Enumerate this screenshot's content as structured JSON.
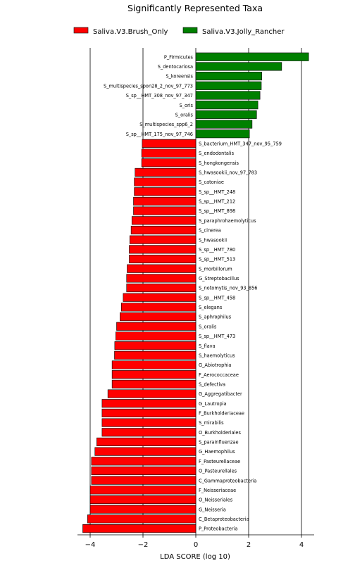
{
  "chart_data": {
    "type": "bar",
    "orientation": "horizontal",
    "title": "Significantly Represented Taxa",
    "xlabel": "LDA SCORE (log 10)",
    "ylabel": "",
    "xlim": [
      -4.3,
      4.6
    ],
    "x_ticks": [
      -4,
      -2,
      0,
      2,
      4
    ],
    "x_tick_labels": [
      "−4",
      "−2",
      "0",
      "2",
      "4"
    ],
    "grid": "vertical lines at major x ticks",
    "legend_position": "top-center",
    "colors": {
      "Saliva.V3.Brush_Only": "#ff0000",
      "Saliva.V3.Jolly_Rancher": "#008000"
    },
    "legend": [
      "Saliva.V3.Brush_Only",
      "Saliva.V3.Jolly_Rancher"
    ],
    "categories": [
      "P_Firmicutes",
      "S_dentocariosa",
      "S_koreensis",
      "S_multispecies_spon28_2_nov_97_773",
      "S_sp__HMT_308_nov_97_347",
      "S_oris",
      "S_oralis",
      "S_multispecies_spp6_2",
      "S_sp__HMT_175_nov_97_746",
      "S_bacterium_HMT_347_nov_95_759",
      "S_endodontalis",
      "S_hongkongensis",
      "S_hwasookii_nov_97_783",
      "S_catoniae",
      "S_sp__HMT_248",
      "S_sp__HMT_212",
      "S_sp__HMT_898",
      "S_paraphrohaemolyticus",
      "S_cinerea",
      "S_hwasookii",
      "S_sp__HMT_780",
      "S_sp__HMT_513",
      "S_morbillorum",
      "G_Streptobacillus",
      "S_notomytis_nov_93_856",
      "S_sp__HMT_458",
      "S_elegans",
      "S_aphrophilus",
      "S_oralis",
      "S_sp__HMT_473",
      "S_flava",
      "S_haemolyticus",
      "G_Abiotrophia",
      "F_Aerococcaceae",
      "S_defectiva",
      "G_Aggregatibacter",
      "G_Lautropia",
      "F_Burkholderiaceae",
      "S_mirabilis",
      "O_Burkholderiales",
      "S_parainfluenzae",
      "G_Haemophilus",
      "F_Pasteurellaceae",
      "O_Pasteurellales",
      "C_Gammaproteobacteria",
      "F_Neisseriaceae",
      "O_Neisseriales",
      "G_Neisseria",
      "C_Betaproteobacteria",
      "P_Proteobacteria"
    ],
    "values": [
      4.27,
      3.25,
      2.5,
      2.48,
      2.43,
      2.35,
      2.3,
      2.13,
      2.03,
      -2.03,
      -2.05,
      -2.05,
      -2.3,
      -2.33,
      -2.33,
      -2.36,
      -2.36,
      -2.42,
      -2.45,
      -2.5,
      -2.52,
      -2.52,
      -2.6,
      -2.62,
      -2.62,
      -2.75,
      -2.82,
      -2.87,
      -3.0,
      -3.03,
      -3.07,
      -3.08,
      -3.17,
      -3.17,
      -3.17,
      -3.33,
      -3.55,
      -3.55,
      -3.55,
      -3.55,
      -3.75,
      -3.82,
      -3.95,
      -3.95,
      -3.95,
      -4.0,
      -4.0,
      -4.0,
      -4.1,
      -4.28
    ],
    "groups": [
      "Saliva.V3.Jolly_Rancher",
      "Saliva.V3.Jolly_Rancher",
      "Saliva.V3.Jolly_Rancher",
      "Saliva.V3.Jolly_Rancher",
      "Saliva.V3.Jolly_Rancher",
      "Saliva.V3.Jolly_Rancher",
      "Saliva.V3.Jolly_Rancher",
      "Saliva.V3.Jolly_Rancher",
      "Saliva.V3.Jolly_Rancher",
      "Saliva.V3.Brush_Only",
      "Saliva.V3.Brush_Only",
      "Saliva.V3.Brush_Only",
      "Saliva.V3.Brush_Only",
      "Saliva.V3.Brush_Only",
      "Saliva.V3.Brush_Only",
      "Saliva.V3.Brush_Only",
      "Saliva.V3.Brush_Only",
      "Saliva.V3.Brush_Only",
      "Saliva.V3.Brush_Only",
      "Saliva.V3.Brush_Only",
      "Saliva.V3.Brush_Only",
      "Saliva.V3.Brush_Only",
      "Saliva.V3.Brush_Only",
      "Saliva.V3.Brush_Only",
      "Saliva.V3.Brush_Only",
      "Saliva.V3.Brush_Only",
      "Saliva.V3.Brush_Only",
      "Saliva.V3.Brush_Only",
      "Saliva.V3.Brush_Only",
      "Saliva.V3.Brush_Only",
      "Saliva.V3.Brush_Only",
      "Saliva.V3.Brush_Only",
      "Saliva.V3.Brush_Only",
      "Saliva.V3.Brush_Only",
      "Saliva.V3.Brush_Only",
      "Saliva.V3.Brush_Only",
      "Saliva.V3.Brush_Only",
      "Saliva.V3.Brush_Only",
      "Saliva.V3.Brush_Only",
      "Saliva.V3.Brush_Only",
      "Saliva.V3.Brush_Only",
      "Saliva.V3.Brush_Only",
      "Saliva.V3.Brush_Only",
      "Saliva.V3.Brush_Only",
      "Saliva.V3.Brush_Only",
      "Saliva.V3.Brush_Only",
      "Saliva.V3.Brush_Only",
      "Saliva.V3.Brush_Only",
      "Saliva.V3.Brush_Only",
      "Saliva.V3.Brush_Only"
    ]
  }
}
